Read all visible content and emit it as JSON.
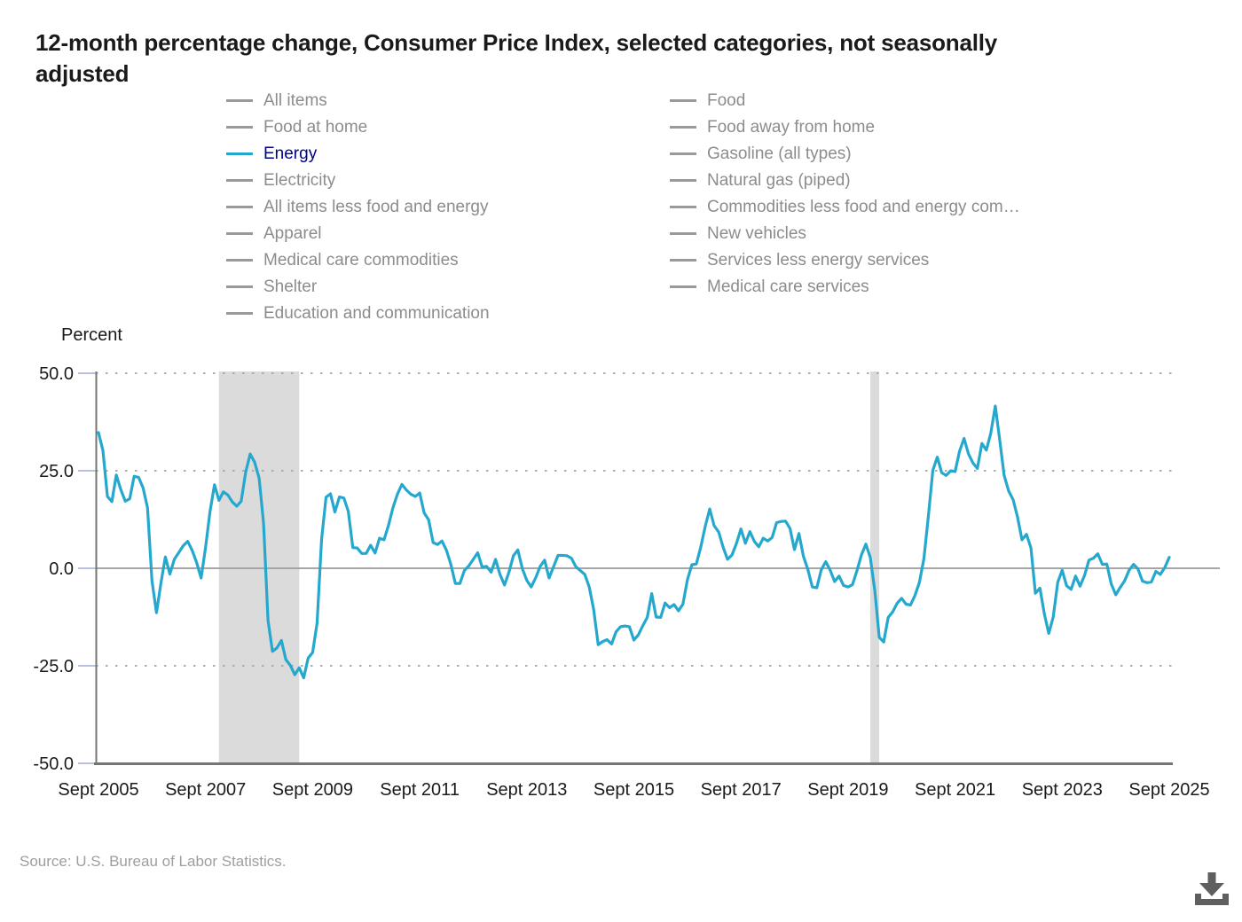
{
  "title": {
    "line1": "12-month percentage change, Consumer Price Index, selected categories, not seasonally",
    "line2": "adjusted"
  },
  "legend": {
    "left_column": [
      {
        "label": "All items",
        "active": false
      },
      {
        "label": "Food at home",
        "active": false
      },
      {
        "label": "Energy",
        "active": true
      },
      {
        "label": "Electricity",
        "active": false
      },
      {
        "label": "All items less food and energy",
        "active": false
      },
      {
        "label": "Apparel",
        "active": false
      },
      {
        "label": "Medical care commodities",
        "active": false
      },
      {
        "label": "Shelter",
        "active": false
      },
      {
        "label": "Education and communication",
        "active": false
      }
    ],
    "right_column": [
      {
        "label": "Food",
        "active": false
      },
      {
        "label": "Food away from home",
        "active": false
      },
      {
        "label": "Gasoline (all types)",
        "active": false
      },
      {
        "label": "Natural gas (piped)",
        "active": false
      },
      {
        "label": "Commodities less food and energy com…",
        "active": false
      },
      {
        "label": "New vehicles",
        "active": false
      },
      {
        "label": "Services less energy services",
        "active": false
      },
      {
        "label": "Medical care services",
        "active": false
      }
    ]
  },
  "colors": {
    "series_line": "#25A8CE",
    "active_legend_text": "#00008B",
    "inactive_legend_text": "#8C8C8C",
    "inactive_legend_line": "#9A9A9A",
    "recession_band": "#DBDBDB",
    "grid_dotted": "#ADADAD",
    "zero_line": "#A6A6A6",
    "axis_line": "#757575",
    "tick_mark": "#B8C1DC",
    "axis_label": "#1A1A1A",
    "source_text": "#9E9E9E",
    "download_icon": "#5F5F5F"
  },
  "chart_data": {
    "type": "line",
    "title": "12-month percentage change, Consumer Price Index, selected categories, not seasonally adjusted",
    "ylabel": "Percent",
    "ylim": [
      -50,
      50
    ],
    "yticks": [
      50.0,
      25.0,
      0.0,
      -25.0,
      -50.0
    ],
    "ytick_labels": [
      "50.0",
      "25.0",
      "0.0",
      "-25.0",
      "-50.0"
    ],
    "xtick_labels": [
      "Sept 2005",
      "Sept 2007",
      "Sept 2009",
      "Sept 2011",
      "Sept 2013",
      "Sept 2015",
      "Sept 2017",
      "Sept 2019",
      "Sept 2021",
      "Sept 2023",
      "Sept 2025"
    ],
    "months_per_xtick": 24,
    "grid": "horizontal dotted, solid at zero",
    "legend_position": "top, two columns",
    "recession_bands": [
      {
        "start": "2007-12",
        "end": "2009-06"
      },
      {
        "start": "2020-02",
        "end": "2020-04"
      }
    ],
    "series": [
      {
        "name": "Energy",
        "frequency": "monthly",
        "x_start": "2005-09",
        "x_end": "2025-09",
        "values": [
          34.8,
          30.2,
          18.4,
          17.1,
          23.9,
          20.2,
          17.2,
          17.8,
          23.6,
          23.3,
          20.6,
          15.5,
          -3.2,
          -11.4,
          -3.8,
          2.9,
          -1.5,
          2.3,
          4.0,
          5.8,
          6.9,
          4.6,
          1.5,
          -2.5,
          5.3,
          14.5,
          21.4,
          17.4,
          19.6,
          18.8,
          17.0,
          15.9,
          17.2,
          24.7,
          29.3,
          27.2,
          23.1,
          11.5,
          -13.3,
          -21.3,
          -20.4,
          -18.5,
          -23.4,
          -24.9,
          -27.3,
          -25.5,
          -28.1,
          -23.0,
          -21.6,
          -14.1,
          7.4,
          18.2,
          19.1,
          14.4,
          18.3,
          18.0,
          14.6,
          5.3,
          5.2,
          3.8,
          3.8,
          5.9,
          3.9,
          7.7,
          7.3,
          11.0,
          15.5,
          19.0,
          21.5,
          20.1,
          19.0,
          18.4,
          19.3,
          14.2,
          12.4,
          6.6,
          6.1,
          7.0,
          4.6,
          0.9,
          -3.9,
          -3.9,
          -0.6,
          0.6,
          2.3,
          4.0,
          0.3,
          0.5,
          -1.0,
          2.3,
          -1.6,
          -4.3,
          -1.0,
          3.2,
          4.7,
          -0.1,
          -3.1,
          -4.8,
          -2.4,
          0.5,
          2.1,
          -2.5,
          0.4,
          3.3,
          3.3,
          3.2,
          2.6,
          0.4,
          -0.6,
          -1.6,
          -4.8,
          -10.6,
          -19.6,
          -18.8,
          -18.3,
          -19.4,
          -16.3,
          -15.0,
          -14.8,
          -15.0,
          -18.4,
          -17.1,
          -14.7,
          -12.6,
          -6.5,
          -12.5,
          -12.6,
          -8.9,
          -10.1,
          -9.3,
          -10.9,
          -9.2,
          -2.9,
          0.9,
          1.1,
          5.4,
          10.8,
          15.2,
          10.9,
          9.3,
          5.4,
          2.3,
          3.4,
          6.4,
          10.1,
          6.4,
          9.4,
          6.9,
          5.5,
          7.7,
          7.0,
          7.9,
          11.7,
          12.0,
          12.1,
          10.2,
          4.8,
          8.9,
          3.1,
          -0.3,
          -4.8,
          -5.0,
          -0.4,
          1.7,
          -0.5,
          -3.4,
          -2.0,
          -4.4,
          -4.8,
          -4.2,
          -0.6,
          3.4,
          6.2,
          2.8,
          -5.7,
          -17.7,
          -18.9,
          -12.6,
          -11.2,
          -9.0,
          -7.7,
          -9.2,
          -9.4,
          -7.0,
          -3.6,
          2.4,
          13.2,
          25.1,
          28.5,
          24.5,
          23.8,
          25.0,
          24.8,
          30.0,
          33.3,
          29.3,
          27.0,
          25.6,
          32.0,
          30.3,
          34.6,
          41.6,
          32.9,
          23.8,
          19.8,
          17.6,
          13.1,
          7.3,
          8.7,
          5.2,
          -6.4,
          -5.1,
          -11.7,
          -16.7,
          -12.5,
          -3.6,
          -0.5,
          -4.5,
          -5.4,
          -2.0,
          -4.6,
          -1.9,
          2.1,
          2.6,
          3.7,
          1.0,
          1.1,
          -4.0,
          -6.8,
          -4.9,
          -3.2,
          -0.5,
          1.0,
          -0.2,
          -3.3,
          -3.7,
          -3.5,
          -0.8,
          -1.6,
          0.2,
          2.8
        ]
      }
    ]
  },
  "source": "Source: U.S. Bureau of Labor Statistics.",
  "icons": {
    "download": "download-icon"
  }
}
